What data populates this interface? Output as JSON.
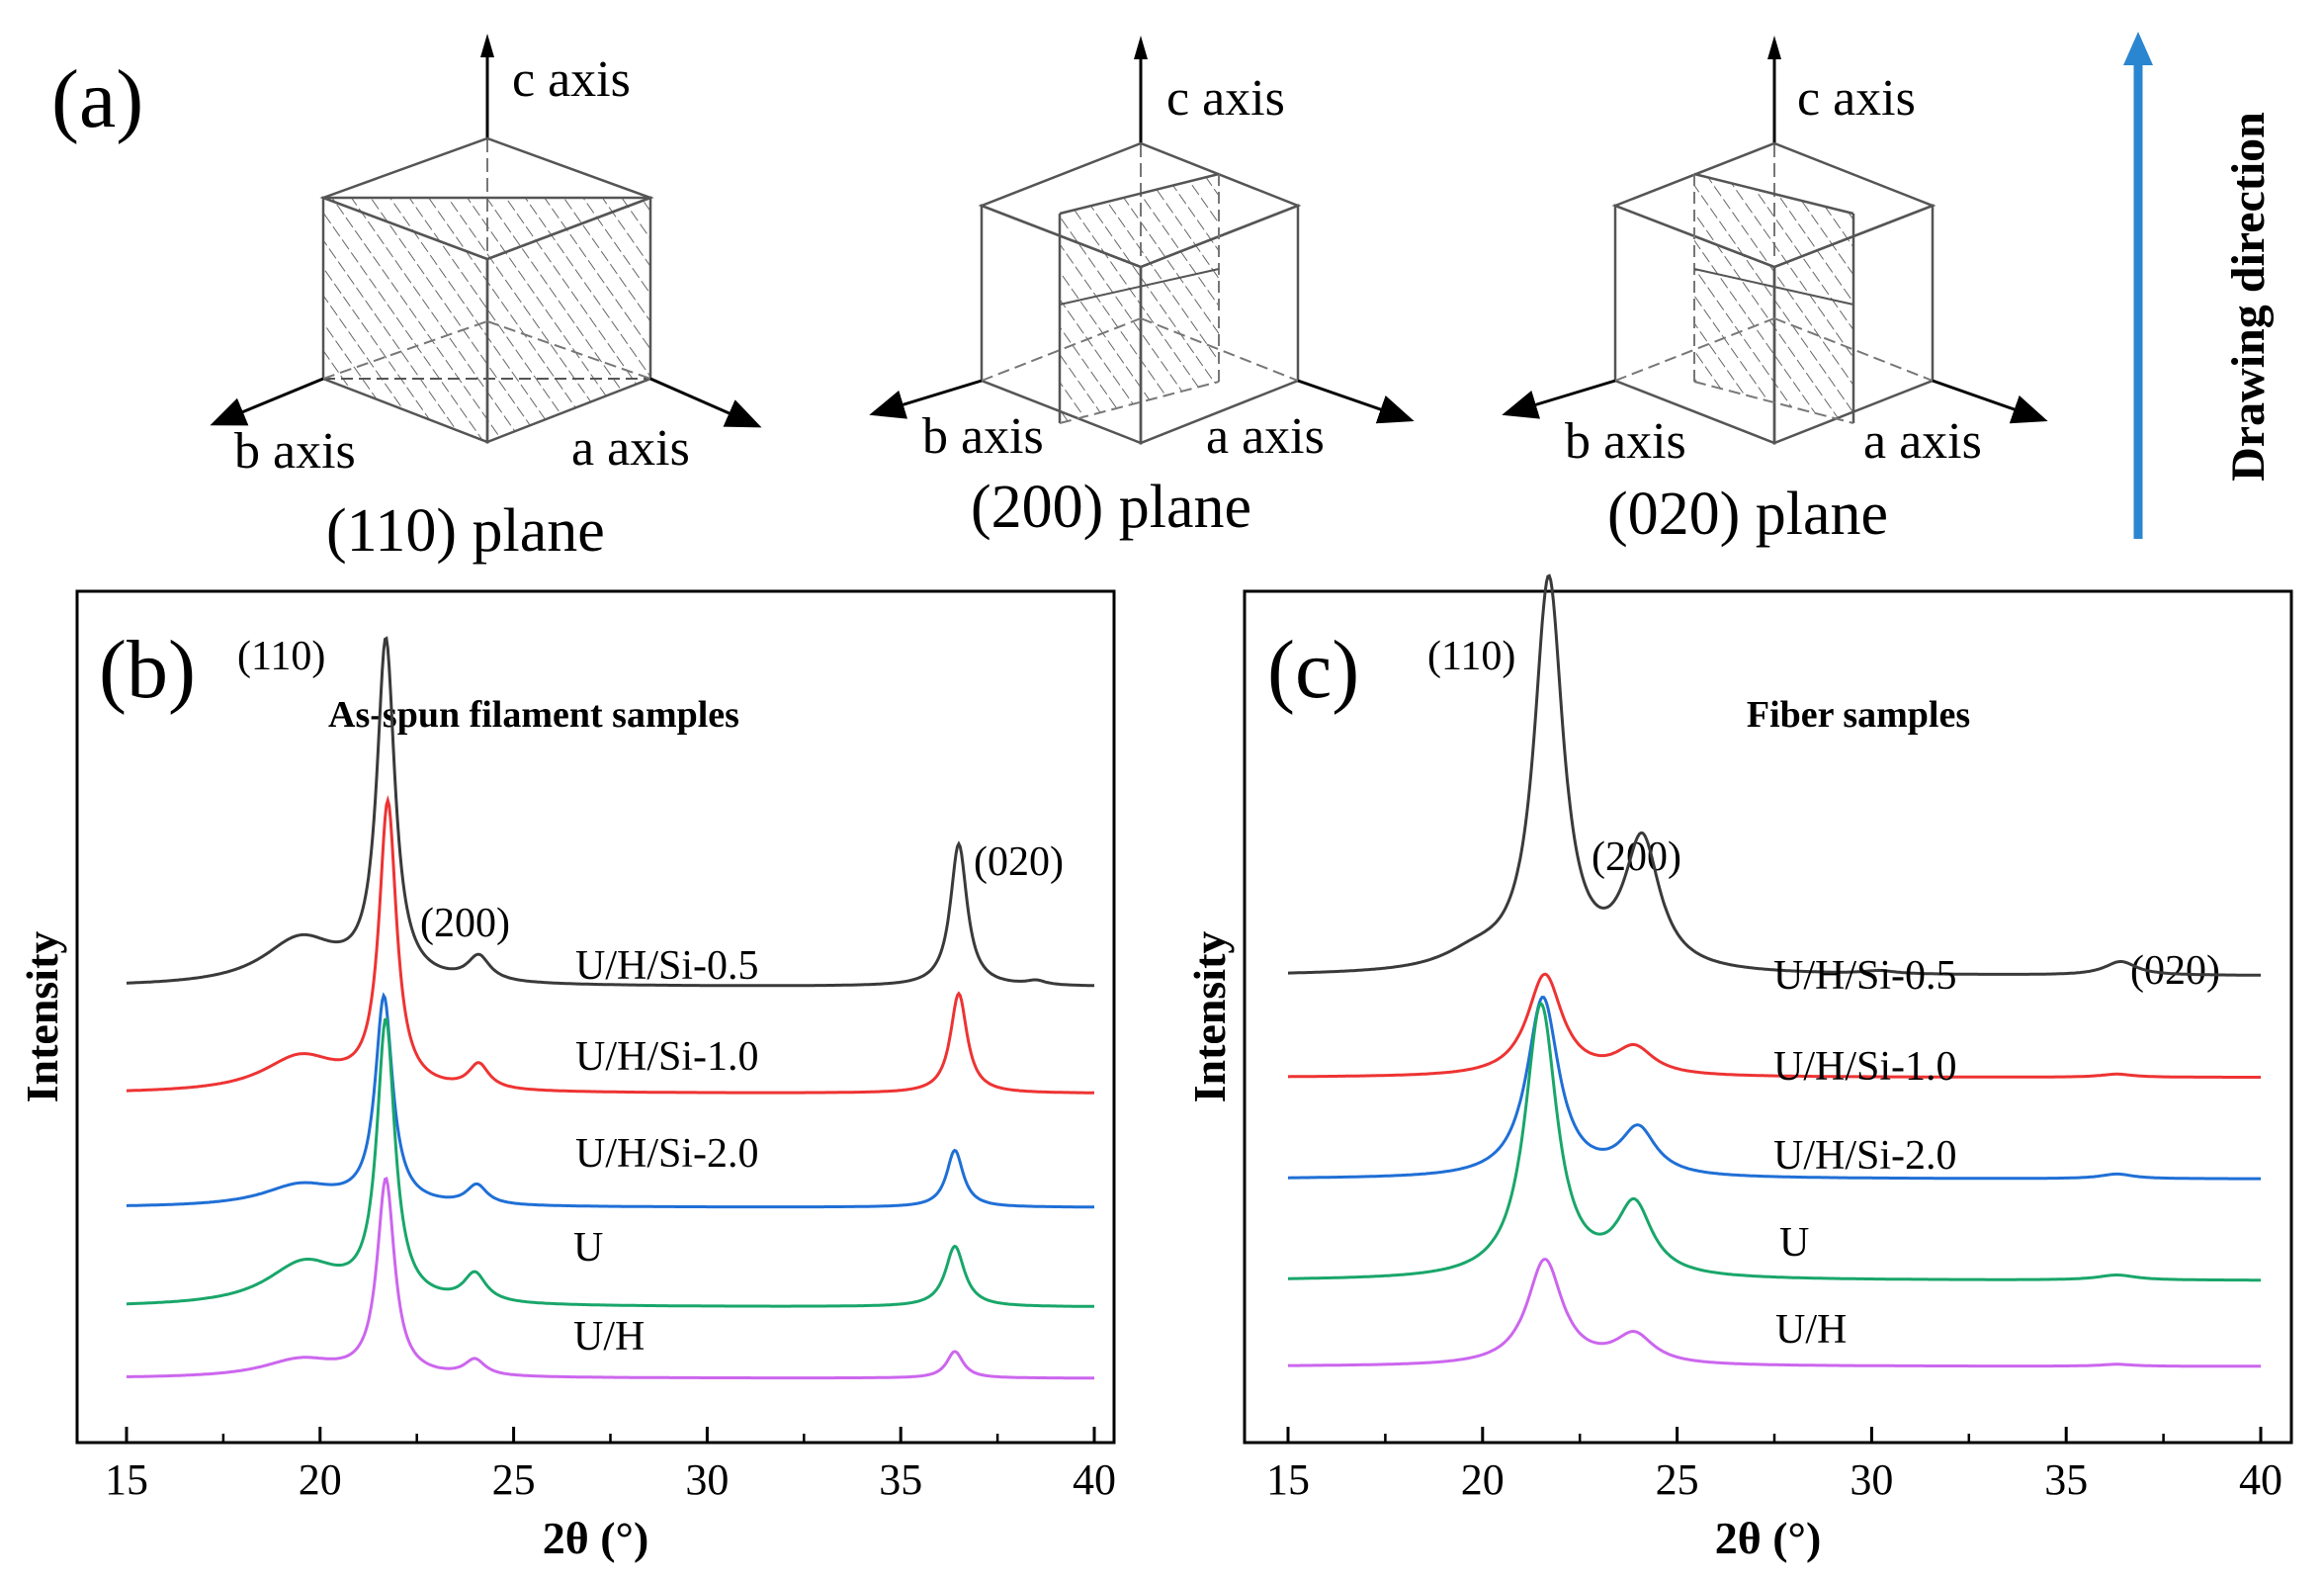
{
  "panel_a": {
    "label": "(a)",
    "cubes": [
      {
        "plane_label": "(110) plane",
        "c_label": "c axis",
        "b_label": "b axis",
        "a_label": "a axis"
      },
      {
        "plane_label": "(200) plane",
        "c_label": "c axis",
        "b_label": "b axis",
        "a_label": "a axis"
      },
      {
        "plane_label": "(020) plane",
        "c_label": "c axis",
        "b_label": "b axis",
        "a_label": "a axis"
      }
    ],
    "drawing_direction": "Drawing direction",
    "arrow_color": "#2a86d0"
  },
  "chart_data": [
    {
      "type": "line",
      "panel_label": "(b)",
      "title": "As-spun filament samples",
      "xlabel": "2θ (°)",
      "ylabel": "Intensity",
      "xlim": [
        15,
        40
      ],
      "xticks": [
        15,
        20,
        25,
        30,
        35,
        40
      ],
      "peak_labels": [
        "(110)",
        "(200)",
        "(020)"
      ],
      "series": [
        {
          "name": "U/H/Si-0.5",
          "color": "#3a3a3a",
          "offset": 1.1,
          "base": 0.0,
          "peaks": [
            [
              19.5,
              0.13,
              1.2
            ],
            [
              21.7,
              0.95,
              0.28
            ],
            [
              24.1,
              0.07,
              0.35
            ],
            [
              36.5,
              0.4,
              0.26
            ],
            [
              38.5,
              0.012,
              0.3
            ]
          ]
        },
        {
          "name": "U/H/Si-1.0",
          "color": "#ee3333",
          "offset": 0.8,
          "base": 0.0,
          "peaks": [
            [
              19.5,
              0.1,
              1.2
            ],
            [
              21.75,
              0.8,
              0.27
            ],
            [
              24.1,
              0.07,
              0.32
            ],
            [
              36.5,
              0.28,
              0.26
            ]
          ]
        },
        {
          "name": "U/H/Si-2.0",
          "color": "#1f6fd6",
          "offset": 0.48,
          "base": 0.0,
          "peaks": [
            [
              19.5,
              0.06,
              1.2
            ],
            [
              21.65,
              0.58,
              0.27
            ],
            [
              24.05,
              0.055,
              0.32
            ],
            [
              36.4,
              0.16,
              0.26
            ]
          ]
        },
        {
          "name": "U",
          "color": "#19a66a",
          "offset": 0.2,
          "base": 0.0,
          "peaks": [
            [
              19.6,
              0.12,
              1.2
            ],
            [
              21.7,
              0.78,
              0.28
            ],
            [
              24.0,
              0.08,
              0.35
            ],
            [
              36.4,
              0.17,
              0.3
            ]
          ]
        },
        {
          "name": "U/H",
          "color": "#cc66ee",
          "offset": 0.0,
          "base": 0.0,
          "peaks": [
            [
              19.5,
              0.05,
              1.2
            ],
            [
              21.7,
              0.55,
              0.27
            ],
            [
              24.0,
              0.045,
              0.32
            ],
            [
              36.4,
              0.075,
              0.26
            ]
          ]
        }
      ]
    },
    {
      "type": "line",
      "panel_label": "(c)",
      "title": "Fiber samples",
      "xlabel": "2θ (°)",
      "ylabel": "Intensity",
      "xlim": [
        15,
        40
      ],
      "xticks": [
        15,
        20,
        25,
        30,
        35,
        40
      ],
      "peak_labels": [
        "(110)",
        "(200)",
        "(020)"
      ],
      "series": [
        {
          "name": "U/H/Si-0.5",
          "color": "#3a3a3a",
          "offset": 1.0,
          "base": 0.0,
          "peaks": [
            [
              19.8,
              0.04,
              1.0
            ],
            [
              21.7,
              1.0,
              0.45
            ],
            [
              24.1,
              0.33,
              0.55
            ],
            [
              36.4,
              0.035,
              0.5
            ],
            [
              30.2,
              0.008,
              0.5
            ]
          ]
        },
        {
          "name": "U/H/Si-1.0",
          "color": "#ee3333",
          "offset": 0.74,
          "base": 0.0,
          "peaks": [
            [
              21.6,
              0.26,
              0.55
            ],
            [
              23.9,
              0.07,
              0.6
            ],
            [
              36.3,
              0.008,
              0.5
            ]
          ]
        },
        {
          "name": "U/H/Si-2.0",
          "color": "#1f6fd6",
          "offset": 0.48,
          "base": 0.0,
          "peaks": [
            [
              21.55,
              0.46,
              0.5
            ],
            [
              24.0,
              0.12,
              0.55
            ],
            [
              36.3,
              0.012,
              0.5
            ]
          ]
        },
        {
          "name": "U",
          "color": "#19a66a",
          "offset": 0.22,
          "base": 0.0,
          "peaks": [
            [
              21.5,
              0.7,
              0.5
            ],
            [
              23.9,
              0.18,
              0.55
            ],
            [
              36.3,
              0.013,
              0.6
            ]
          ]
        },
        {
          "name": "U/H",
          "color": "#cc66ee",
          "offset": 0.0,
          "base": 0.0,
          "peaks": [
            [
              21.6,
              0.27,
              0.55
            ],
            [
              23.9,
              0.075,
              0.6
            ],
            [
              36.3,
              0.005,
              0.5
            ]
          ]
        }
      ]
    }
  ]
}
